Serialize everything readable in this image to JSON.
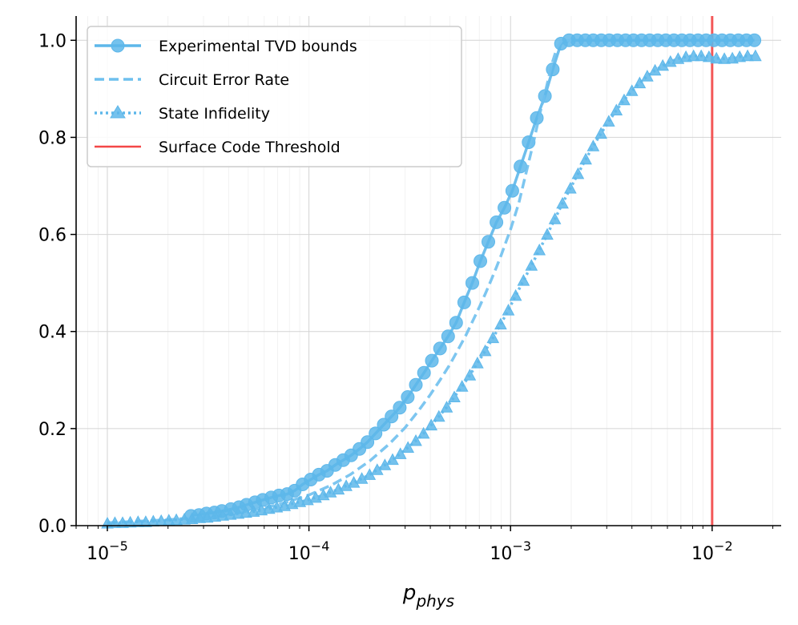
{
  "chart_data": {
    "type": "line",
    "title": "",
    "xlabel_base": "p",
    "xlabel_sub": "phys",
    "ylabel": "",
    "xscale": "log",
    "xlim": [
      7e-06,
      0.022
    ],
    "ylim": [
      0.0,
      1.05
    ],
    "grid": true,
    "legend_position": "top-left",
    "x_tick_labels": [
      {
        "value": 1e-05,
        "base": "10",
        "exp": "−5"
      },
      {
        "value": 0.0001,
        "base": "10",
        "exp": "−4"
      },
      {
        "value": 0.001,
        "base": "10",
        "exp": "−3"
      },
      {
        "value": 0.01,
        "base": "10",
        "exp": "−2"
      }
    ],
    "y_ticks": [
      0.0,
      0.2,
      0.4,
      0.6,
      0.8,
      1.0
    ],
    "y_tick_labels": [
      "0.0",
      "0.2",
      "0.4",
      "0.6",
      "0.8",
      "1.0"
    ],
    "series": [
      {
        "name": "Experimental TVD bounds",
        "style": "solid-circle",
        "color": "#5DB7EA",
        "x": [
          2.6e-05,
          2.85e-05,
          3.1e-05,
          3.4e-05,
          3.7e-05,
          4.1e-05,
          4.5e-05,
          4.9e-05,
          5.4e-05,
          5.9e-05,
          6.5e-05,
          7.1e-05,
          7.8e-05,
          8.5e-05,
          9.3e-05,
          0.000102,
          0.000112,
          0.000123,
          0.000135,
          0.000148,
          0.000162,
          0.000178,
          0.000195,
          0.000214,
          0.000235,
          0.000257,
          0.000282,
          0.000309,
          0.000339,
          0.000372,
          0.000407,
          0.000447,
          0.00049,
          0.000537,
          0.000589,
          0.000646,
          0.000708,
          0.000776,
          0.000851,
          0.000933,
          0.00102,
          0.00112,
          0.00123,
          0.00135,
          0.00148,
          0.00162,
          0.00178,
          0.00195,
          0.00214,
          0.00235,
          0.00257,
          0.00282,
          0.00309,
          0.00339,
          0.00372,
          0.00407,
          0.00447,
          0.0049,
          0.00537,
          0.00589,
          0.00646,
          0.00708,
          0.00776,
          0.00851,
          0.00933,
          0.0102,
          0.0112,
          0.0123,
          0.0135,
          0.0148,
          0.0162
        ],
        "values": [
          0.02,
          0.022,
          0.025,
          0.027,
          0.03,
          0.034,
          0.038,
          0.043,
          0.048,
          0.053,
          0.058,
          0.062,
          0.065,
          0.072,
          0.085,
          0.095,
          0.105,
          0.113,
          0.125,
          0.135,
          0.145,
          0.158,
          0.172,
          0.19,
          0.208,
          0.225,
          0.243,
          0.265,
          0.29,
          0.315,
          0.34,
          0.365,
          0.39,
          0.418,
          0.46,
          0.5,
          0.545,
          0.585,
          0.625,
          0.655,
          0.69,
          0.74,
          0.79,
          0.84,
          0.885,
          0.94,
          0.993,
          1.0,
          1.0,
          1.0,
          1.0,
          1.0,
          1.0,
          1.0,
          1.0,
          1.0,
          1.0,
          1.0,
          1.0,
          1.0,
          1.0,
          1.0,
          1.0,
          1.0,
          1.0,
          1.0,
          1.0,
          1.0,
          1.0,
          1.0,
          1.0
        ]
      },
      {
        "name": "Circuit Error Rate",
        "style": "dashed",
        "color": "#6FC0EE",
        "x": [
          1e-05,
          2e-05,
          3e-05,
          5e-05,
          7e-05,
          0.0001,
          0.00013,
          0.00016,
          0.0002,
          0.00025,
          0.0003,
          0.00035,
          0.0004,
          0.00045,
          0.0005,
          0.00055,
          0.0006,
          0.00065,
          0.0007,
          0.00075,
          0.0008,
          0.00085,
          0.0009,
          0.00095,
          0.001,
          0.0011,
          0.0012,
          0.0013,
          0.0014,
          0.0015,
          0.0016,
          0.0017,
          0.0018,
          0.0019,
          0.002
        ],
        "values": [
          0.006,
          0.012,
          0.018,
          0.03,
          0.043,
          0.063,
          0.084,
          0.105,
          0.133,
          0.168,
          0.202,
          0.237,
          0.27,
          0.302,
          0.332,
          0.363,
          0.392,
          0.422,
          0.45,
          0.478,
          0.505,
          0.532,
          0.558,
          0.585,
          0.61,
          0.665,
          0.73,
          0.79,
          0.85,
          0.9,
          0.95,
          0.985,
          1.0,
          1.0,
          1.0
        ]
      },
      {
        "name": "State Infidelity",
        "style": "dotted-triangle",
        "color": "#5DB7EA",
        "x": [
          1e-05,
          1.09e-05,
          1.19e-05,
          1.3e-05,
          1.42e-05,
          1.55e-05,
          1.69e-05,
          1.85e-05,
          2.02e-05,
          2.2e-05,
          2.41e-05,
          2.63e-05,
          2.87e-05,
          3.13e-05,
          3.42e-05,
          3.74e-05,
          4.08e-05,
          4.46e-05,
          4.87e-05,
          5.32e-05,
          5.81e-05,
          6.34e-05,
          6.93e-05,
          7.57e-05,
          8.26e-05,
          9.02e-05,
          9.85e-05,
          0.000108,
          0.000118,
          0.000128,
          0.00014,
          0.000153,
          0.000167,
          0.000183,
          0.0002,
          0.000218,
          0.000238,
          0.00026,
          0.000284,
          0.00031,
          0.000339,
          0.00037,
          0.000404,
          0.000441,
          0.000482,
          0.000526,
          0.000575,
          0.000628,
          0.000685,
          0.000749,
          0.000818,
          0.000893,
          0.000975,
          0.00106,
          0.00116,
          0.00127,
          0.00139,
          0.00152,
          0.00166,
          0.00181,
          0.00198,
          0.00216,
          0.00236,
          0.00257,
          0.00281,
          0.00307,
          0.00335,
          0.00366,
          0.004,
          0.00437,
          0.00477,
          0.00521,
          0.00569,
          0.00621,
          0.00678,
          0.00741,
          0.00809,
          0.00883,
          0.00965,
          0.0105,
          0.0115,
          0.0126,
          0.0137,
          0.015,
          0.0164
        ],
        "values": [
          0.005,
          0.006,
          0.006,
          0.007,
          0.008,
          0.008,
          0.009,
          0.01,
          0.011,
          0.012,
          0.013,
          0.014,
          0.016,
          0.017,
          0.019,
          0.021,
          0.023,
          0.025,
          0.027,
          0.029,
          0.032,
          0.035,
          0.038,
          0.041,
          0.045,
          0.049,
          0.053,
          0.058,
          0.063,
          0.069,
          0.075,
          0.082,
          0.089,
          0.097,
          0.105,
          0.115,
          0.125,
          0.136,
          0.148,
          0.161,
          0.175,
          0.19,
          0.207,
          0.225,
          0.244,
          0.265,
          0.287,
          0.31,
          0.335,
          0.36,
          0.387,
          0.415,
          0.444,
          0.474,
          0.505,
          0.536,
          0.568,
          0.6,
          0.632,
          0.664,
          0.695,
          0.725,
          0.755,
          0.782,
          0.808,
          0.833,
          0.856,
          0.877,
          0.896,
          0.912,
          0.926,
          0.938,
          0.948,
          0.956,
          0.962,
          0.966,
          0.968,
          0.968,
          0.966,
          0.963,
          0.962,
          0.963,
          0.966,
          0.968,
          0.968
        ]
      }
    ],
    "threshold": {
      "name": "Surface Code Threshold",
      "value": 0.01,
      "color": "#F44747"
    }
  }
}
